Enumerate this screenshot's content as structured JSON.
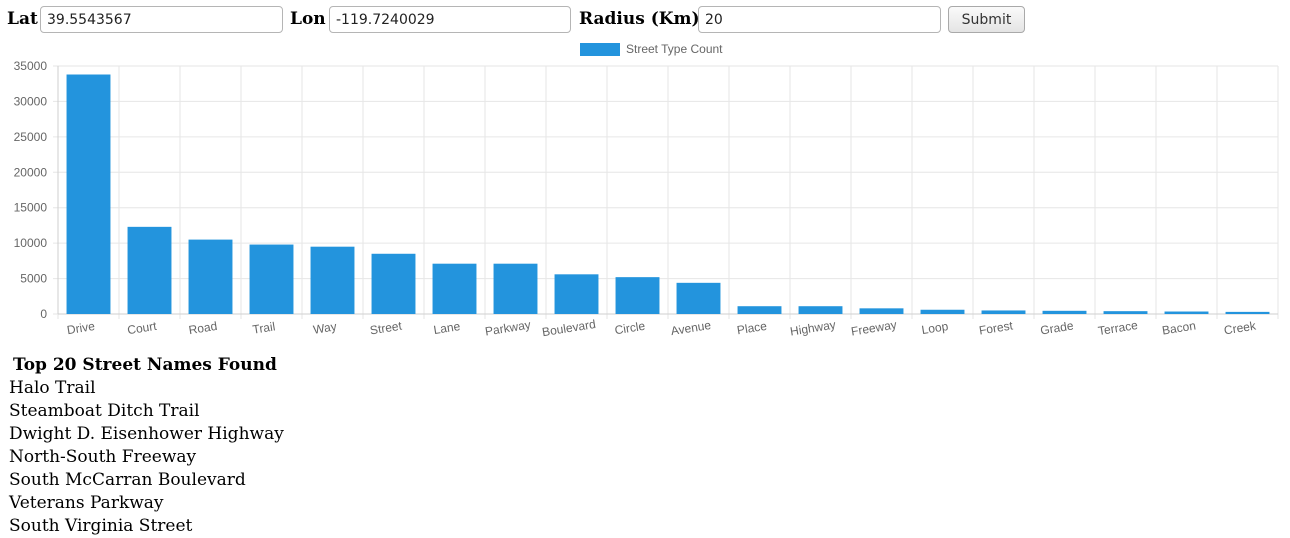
{
  "form": {
    "lat_label": "Lat",
    "lat_value": "39.5543567",
    "lon_label": "Lon",
    "lon_value": "-119.7240029",
    "radius_label": "Radius (Km)",
    "radius_value": "20",
    "submit_label": "Submit"
  },
  "chart_data": {
    "type": "bar",
    "title": "",
    "xlabel": "",
    "ylabel": "",
    "ylim": [
      0,
      35000
    ],
    "yticks": [
      0,
      5000,
      10000,
      15000,
      20000,
      25000,
      30000,
      35000
    ],
    "grid": true,
    "legend_position": "top-center",
    "bar_color": "#2394dd",
    "categories": [
      "Drive",
      "Court",
      "Road",
      "Trail",
      "Way",
      "Street",
      "Lane",
      "Parkway",
      "Boulevard",
      "Circle",
      "Avenue",
      "Place",
      "Highway",
      "Freeway",
      "Loop",
      "Forest",
      "Grade",
      "Terrace",
      "Bacon",
      "Creek"
    ],
    "series": [
      {
        "name": "Street Type Count",
        "values": [
          33800,
          12300,
          10500,
          9800,
          9500,
          8500,
          7100,
          7100,
          5600,
          5200,
          4400,
          1100,
          1100,
          800,
          600,
          500,
          450,
          400,
          350,
          300
        ]
      }
    ]
  },
  "street_list": {
    "title": "Top 20 Street Names Found",
    "items": [
      "Halo Trail",
      "Steamboat Ditch Trail",
      "Dwight D. Eisenhower Highway",
      "North-South Freeway",
      "South McCarran Boulevard",
      "Veterans Parkway",
      "South Virginia Street"
    ]
  }
}
